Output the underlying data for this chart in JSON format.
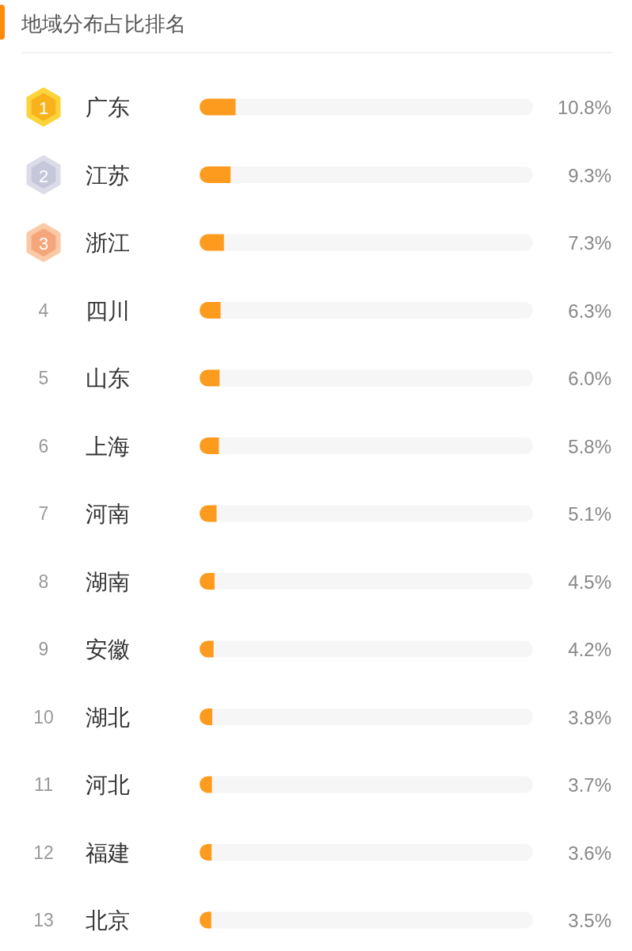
{
  "chart_data": {
    "type": "bar",
    "orientation": "horizontal",
    "title": "地域分布占比排名",
    "categories": [
      "广东",
      "江苏",
      "浙江",
      "四川",
      "山东",
      "上海",
      "河南",
      "湖南",
      "安徽",
      "湖北",
      "河北",
      "福建",
      "北京"
    ],
    "values": [
      10.8,
      9.3,
      7.3,
      6.3,
      6.0,
      5.8,
      5.1,
      4.5,
      4.2,
      3.8,
      3.7,
      3.6,
      3.5
    ],
    "color": "#fd9b1f",
    "xlim": [
      0,
      100
    ],
    "tick_labels": "y",
    "value_labels": [
      "10.8%",
      "9.3%",
      "7.3%",
      "6.3%",
      "6.0%",
      "5.8%",
      "5.1%",
      "4.5%",
      "4.2%",
      "3.8%",
      "3.7%",
      "3.6%",
      "3.5%"
    ],
    "annotations": [
      "1",
      "2",
      "3",
      "4",
      "5",
      "6",
      "7",
      "8",
      "9",
      "10",
      "11",
      "12",
      "13"
    ]
  }
}
